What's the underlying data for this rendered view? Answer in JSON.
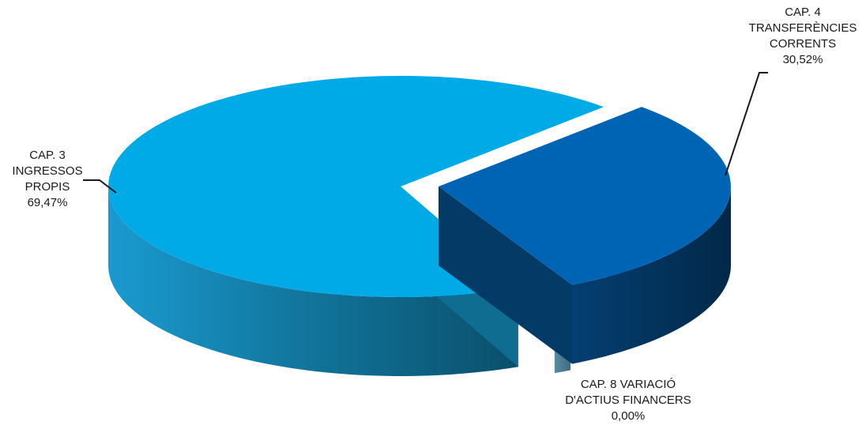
{
  "chart_data": {
    "type": "pie",
    "style": "3d-exploded",
    "title": "",
    "slices": [
      {
        "label_lines": [
          "CAP. 3",
          "INGRESSOS",
          "PROPIS"
        ],
        "value": 69.47,
        "value_label": "69,47%",
        "color": "#00aae6"
      },
      {
        "label_lines": [
          "CAP. 4",
          "TRANSFERÈNCIES",
          "CORRENTS"
        ],
        "value": 30.52,
        "value_label": "30,52%",
        "color": "#0064b4"
      },
      {
        "label_lines": [
          "CAP. 8 VARIACIÓ",
          "D'ACTIUS FINANCERS"
        ],
        "value": 0.0,
        "value_label": "0,00%",
        "color": "#4a7f96"
      }
    ]
  }
}
